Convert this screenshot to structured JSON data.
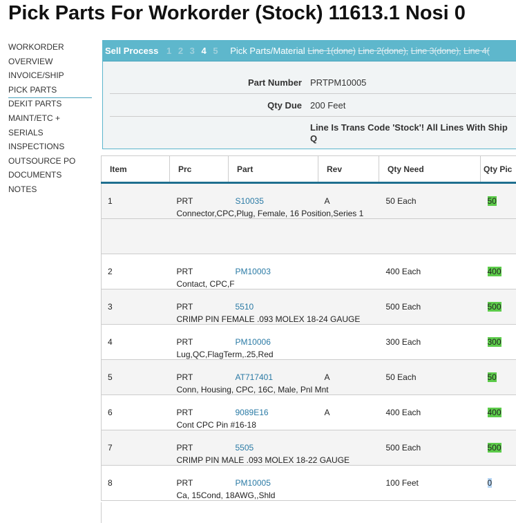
{
  "title": "Pick Parts For Workorder (Stock) 11613.1 Nosi 0",
  "nav": [
    "WORKORDER",
    "OVERVIEW",
    "INVOICE/SHIP",
    "PICK PARTS",
    "DEKIT PARTS",
    "MAINT/ETC +",
    "SERIALS",
    "INSPECTIONS",
    "OUTSOURCE PO",
    "DOCUMENTS",
    "NOTES"
  ],
  "process": {
    "label": "Sell Process",
    "steps": [
      "1",
      "2",
      "3",
      "4",
      "5"
    ],
    "current": "4",
    "title": "Pick Parts/Material",
    "done": [
      "Line 1(done)",
      "Line 2(done),",
      "Line 3(done),",
      "Line 4("
    ]
  },
  "fields": {
    "part_label": "Part Number",
    "part_value": "PRTPM10005",
    "qty_label": "Qty Due",
    "qty_value": "200 Feet",
    "notice": "Line Is Trans Code 'Stock'! All Lines With Ship Q"
  },
  "headers": [
    "Item",
    "Prc",
    "Part",
    "Rev",
    "Qty Need",
    "Qty Pic"
  ],
  "rows": [
    {
      "item": "1",
      "prc": "PRT",
      "part": "S10035",
      "rev": "A",
      "qty_need": "50 Each",
      "qty_pick": "50",
      "desc": "Connector,CPC,Plug, Female, 16 Position,Series 1"
    },
    {
      "item": "2",
      "prc": "PRT",
      "part": "PM10003",
      "rev": "",
      "qty_need": "400 Each",
      "qty_pick": "400",
      "desc": "Contact, CPC,F"
    },
    {
      "item": "3",
      "prc": "PRT",
      "part": "5510",
      "rev": "",
      "qty_need": "500 Each",
      "qty_pick": "500",
      "desc": "CRIMP PIN FEMALE .093 MOLEX 18-24 GAUGE"
    },
    {
      "item": "4",
      "prc": "PRT",
      "part": "PM10006",
      "rev": "",
      "qty_need": "300 Each",
      "qty_pick": "300",
      "desc": "Lug,QC,FlagTerm,.25,Red"
    },
    {
      "item": "5",
      "prc": "PRT",
      "part": "AT717401",
      "rev": "A",
      "qty_need": "50 Each",
      "qty_pick": "50",
      "desc": "Conn, Housing, CPC, 16C, Male, Pnl Mnt"
    },
    {
      "item": "6",
      "prc": "PRT",
      "part": "9089E16",
      "rev": "A",
      "qty_need": "400 Each",
      "qty_pick": "400",
      "desc": "Cont CPC Pin #16-18"
    },
    {
      "item": "7",
      "prc": "PRT",
      "part": "5505",
      "rev": "",
      "qty_need": "500 Each",
      "qty_pick": "500",
      "desc": "CRIMP PIN MALE .093 MOLEX 18-22 GAUGE"
    },
    {
      "item": "8",
      "prc": "PRT",
      "part": "PM10005",
      "rev": "",
      "qty_need": "100 Feet",
      "qty_pick": "0",
      "desc": "Ca, 15Cond, 18AWG,,Shld"
    }
  ],
  "colors": {
    "accent": "#5eb7cc",
    "picked": "#5ccb4a",
    "link": "#2a7aa5"
  }
}
